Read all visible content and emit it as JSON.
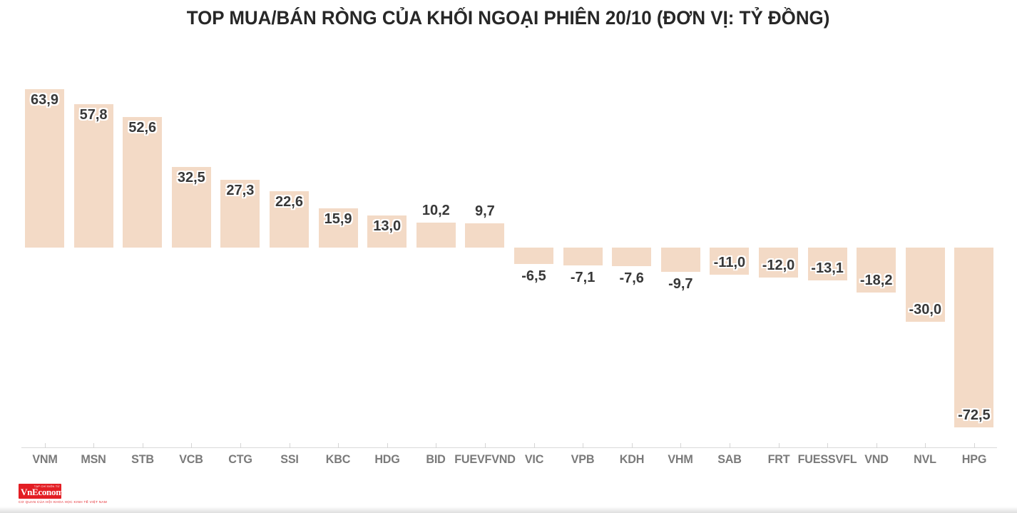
{
  "chart_data": {
    "type": "bar",
    "title": "TOP MUA/BÁN RÒNG CỦA KHỐI NGOẠI PHIÊN 20/10 (ĐƠN VỊ: TỶ ĐỒNG)",
    "categories": [
      "VNM",
      "MSN",
      "STB",
      "VCB",
      "CTG",
      "SSI",
      "KBC",
      "HDG",
      "BID",
      "FUEVFVND",
      "VIC",
      "VPB",
      "KDH",
      "VHM",
      "SAB",
      "FRT",
      "FUESSVFL",
      "VND",
      "NVL",
      "HPG"
    ],
    "values": [
      63.9,
      57.8,
      52.6,
      32.5,
      27.3,
      22.6,
      15.9,
      13.0,
      10.2,
      9.7,
      -6.5,
      -7.1,
      -7.6,
      -9.7,
      -11.0,
      -12.0,
      -13.1,
      -18.2,
      -30.0,
      -72.5
    ],
    "value_labels": [
      "63,9",
      "57,8",
      "52,6",
      "32,5",
      "27,3",
      "22,6",
      "15,9",
      "13,0",
      "10,2",
      "9,7",
      "-6,5",
      "-7,1",
      "-7,6",
      "-9,7",
      "-11,0",
      "-12,0",
      "-13,1",
      "-18,2",
      "-30,0",
      "-72,5"
    ],
    "xlabel": "",
    "ylabel": "",
    "ylim": [
      -80,
      70
    ],
    "grid": false,
    "legend": false,
    "colors": {
      "bar": "#f3dac6",
      "value_label": "#383838",
      "axis_label": "#7a7a7a",
      "axis_line": "#d9d9d9",
      "title": "#272727"
    }
  },
  "branding": {
    "logo_text": "VnEconomy",
    "logo_top_text": "TẠP CHÍ ĐIỆN TỬ",
    "logo_tagline": "CƠ QUAN CỦA HỘI KHOA HỌC KINH TẾ VIỆT NAM",
    "logo_bg_color": "#e31e24",
    "logo_text_color": "#ffffff"
  }
}
